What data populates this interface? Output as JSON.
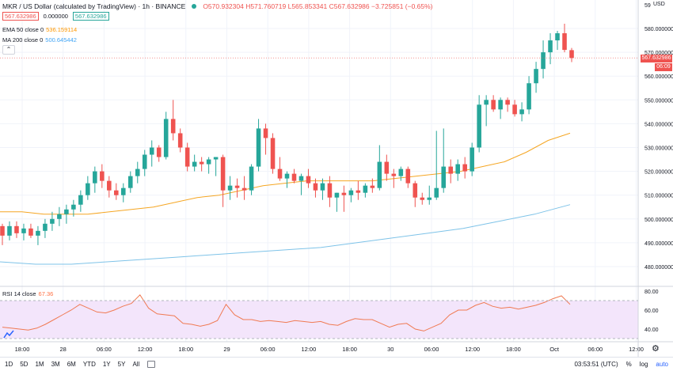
{
  "header": {
    "title": "MKR / US Dollar (calculated by TradingView) · 1h · BINANCE",
    "ohlc": "O570.932304 H571.760719 L565.853341 C567.632986 −3.725851 (−0.65%)",
    "bid": "567.632986",
    "spread": "0.000000",
    "ask": "567.632986"
  },
  "indicators": {
    "ema_label": "EMA 50 close 0",
    "ema_value": "536.159114",
    "ma_label": "MA 200 close 0",
    "ma_value": "500.645442",
    "rsi_label": "RSI 14 close",
    "rsi_value": "67.36"
  },
  "price_axis": {
    "currency": "USD",
    "top_partial": "59",
    "labels": [
      "580.000000",
      "570.000000",
      "560.000000",
      "550.000000",
      "540.000000",
      "530.000000",
      "520.000000",
      "510.000000",
      "500.000000",
      "490.000000",
      "480.000000"
    ],
    "current_price": "567.632986",
    "countdown": "06:09"
  },
  "rsi_axis": {
    "labels": [
      "80.00",
      "60.00",
      "40.00"
    ]
  },
  "time_axis": {
    "labels": [
      "18:00",
      "28",
      "06:00",
      "12:00",
      "18:00",
      "29",
      "06:00",
      "12:00",
      "18:00",
      "30",
      "06:00",
      "12:00",
      "18:00",
      "Oct",
      "06:00",
      "12:00"
    ]
  },
  "bottom_bar": {
    "ranges": [
      "1D",
      "5D",
      "1M",
      "3M",
      "6M",
      "YTD",
      "1Y",
      "5Y",
      "All"
    ],
    "clock": "03:53:51 (UTC)",
    "percent": "%",
    "log": "log",
    "auto": "auto"
  },
  "colors": {
    "up": "#26a69a",
    "down": "#ef5350",
    "ema": "#f5a623",
    "ma": "#7ec3e8",
    "rsi": "#f07a53",
    "rsi_band": "#f3e5fb"
  },
  "chart_data": {
    "type": "candlestick",
    "title": "MKR / US Dollar · 1h · BINANCE",
    "ylim": [
      473,
      590
    ],
    "candles": [
      [
        497,
        498,
        489,
        493
      ],
      [
        493,
        499,
        491,
        497
      ],
      [
        497,
        499,
        492,
        494
      ],
      [
        494,
        498,
        491,
        496
      ],
      [
        496,
        498,
        492,
        493
      ],
      [
        493,
        497,
        489,
        495
      ],
      [
        495,
        500,
        492,
        498
      ],
      [
        498,
        503,
        495,
        500
      ],
      [
        500,
        505,
        497,
        502
      ],
      [
        502,
        506,
        498,
        504
      ],
      [
        504,
        508,
        501,
        506
      ],
      [
        506,
        512,
        503,
        510
      ],
      [
        510,
        518,
        508,
        515
      ],
      [
        515,
        522,
        511,
        520
      ],
      [
        520,
        523,
        513,
        516
      ],
      [
        516,
        518,
        509,
        512
      ],
      [
        512,
        515,
        508,
        510
      ],
      [
        510,
        515,
        507,
        513
      ],
      [
        513,
        520,
        511,
        518
      ],
      [
        518,
        524,
        515,
        521
      ],
      [
        521,
        529,
        518,
        527
      ],
      [
        527,
        533,
        522,
        530
      ],
      [
        530,
        531,
        524,
        526
      ],
      [
        526,
        545,
        525,
        542
      ],
      [
        542,
        550,
        533,
        536
      ],
      [
        536,
        538,
        528,
        530
      ],
      [
        530,
        532,
        520,
        522
      ],
      [
        522,
        527,
        520,
        524
      ],
      [
        524,
        526,
        520,
        523
      ],
      [
        523,
        526,
        519,
        525
      ],
      [
        525,
        526,
        518,
        526
      ],
      [
        526,
        527,
        505,
        512
      ],
      [
        512,
        518,
        508,
        514
      ],
      [
        514,
        517,
        509,
        513
      ],
      [
        513,
        518,
        508,
        512
      ],
      [
        512,
        523,
        510,
        522
      ],
      [
        522,
        542,
        520,
        538
      ],
      [
        538,
        540,
        527,
        534
      ],
      [
        534,
        536,
        519,
        521
      ],
      [
        521,
        526,
        516,
        517
      ],
      [
        517,
        520,
        513,
        519
      ],
      [
        519,
        521,
        515,
        516
      ],
      [
        516,
        519,
        510,
        518
      ],
      [
        518,
        521,
        513,
        515
      ],
      [
        515,
        517,
        509,
        512
      ],
      [
        512,
        517,
        508,
        515
      ],
      [
        515,
        518,
        505,
        509
      ],
      [
        509,
        511,
        503,
        511
      ],
      [
        511,
        514,
        503,
        510
      ],
      [
        510,
        513,
        507,
        512
      ],
      [
        512,
        516,
        508,
        511
      ],
      [
        511,
        515,
        509,
        514
      ],
      [
        514,
        517,
        511,
        513
      ],
      [
        513,
        531,
        512,
        524
      ],
      [
        524,
        527,
        516,
        519
      ],
      [
        519,
        521,
        513,
        518
      ],
      [
        518,
        522,
        516,
        521
      ],
      [
        521,
        522,
        513,
        515
      ],
      [
        515,
        516,
        505,
        509
      ],
      [
        509,
        511,
        506,
        508
      ],
      [
        508,
        514,
        506,
        509
      ],
      [
        509,
        537,
        508,
        513
      ],
      [
        513,
        538,
        511,
        522
      ],
      [
        522,
        525,
        515,
        519
      ],
      [
        519,
        525,
        516,
        523
      ],
      [
        523,
        526,
        517,
        520
      ],
      [
        520,
        532,
        518,
        530
      ],
      [
        530,
        552,
        528,
        548
      ],
      [
        548,
        552,
        539,
        550
      ],
      [
        550,
        552,
        545,
        546
      ],
      [
        546,
        551,
        542,
        550
      ],
      [
        550,
        551,
        545,
        548
      ],
      [
        548,
        550,
        543,
        544
      ],
      [
        544,
        549,
        541,
        546
      ],
      [
        546,
        560,
        544,
        557
      ],
      [
        557,
        566,
        553,
        563
      ],
      [
        563,
        575,
        559,
        570
      ],
      [
        570,
        578,
        565,
        575
      ],
      [
        575,
        579,
        571,
        578
      ],
      [
        578,
        582,
        570,
        571
      ],
      [
        570.9,
        571.8,
        565.9,
        567.6
      ]
    ],
    "ema50": [
      503,
      503,
      502,
      502,
      502,
      503,
      504,
      505,
      507,
      509,
      510,
      512,
      514,
      515,
      516,
      516,
      516,
      516,
      517,
      518,
      519,
      520,
      522,
      524,
      528,
      533,
      536
    ],
    "ma200": [
      482,
      481,
      481,
      482,
      483,
      484,
      485,
      486,
      487,
      488,
      490,
      492,
      494,
      496,
      499,
      502,
      506
    ],
    "rsi": [
      42,
      41,
      40,
      39,
      41,
      45,
      50,
      55,
      60,
      66,
      62,
      58,
      57,
      60,
      64,
      67,
      76,
      62,
      56,
      55,
      54,
      46,
      45,
      43,
      45,
      49,
      66,
      55,
      50,
      50,
      48,
      49,
      48,
      47,
      49,
      48,
      47,
      48,
      45,
      44,
      48,
      51,
      50,
      50,
      46,
      42,
      45,
      46,
      40,
      38,
      42,
      46,
      55,
      60,
      60,
      65,
      68,
      64,
      62,
      63,
      61,
      63,
      65,
      68,
      72,
      75,
      66
    ]
  }
}
